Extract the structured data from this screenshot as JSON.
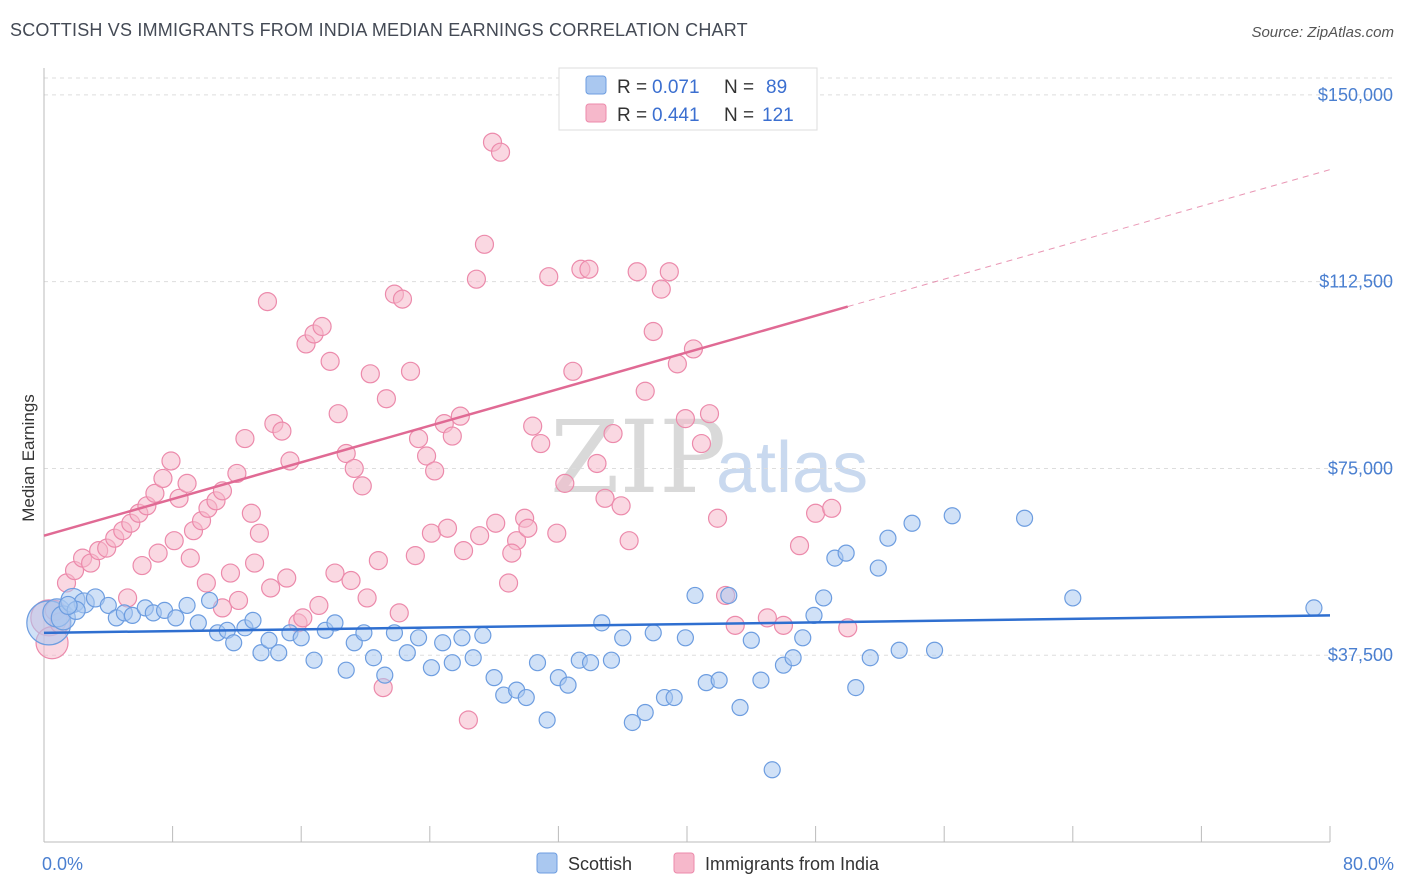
{
  "header": {
    "title": "SCOTTISH VS IMMIGRANTS FROM INDIA MEDIAN EARNINGS CORRELATION CHART",
    "source": "Source: ZipAtlas.com"
  },
  "colors": {
    "scottish_fill": "#aac8f0",
    "scottish_stroke": "#6d9de0",
    "scottish_line": "#2f6fd0",
    "india_fill": "#f6b8cb",
    "india_stroke": "#ec8aab",
    "india_line": "#e06a94",
    "axis_label": "#4a7fd0",
    "grid": "#dddddd"
  },
  "watermark": {
    "zip": "ZIP",
    "atlas": "atlas"
  },
  "legend": {
    "scottish": {
      "r_label": "R =",
      "r_value": "0.071",
      "n_label": "N =",
      "n_value": "89"
    },
    "india": {
      "r_label": "R =",
      "r_value": "0.441",
      "n_label": "N =",
      "n_value": "121"
    }
  },
  "bottom_legend": {
    "scottish": "Scottish",
    "india": "Immigrants from India"
  },
  "chart_data": {
    "type": "scatter",
    "title": "SCOTTISH VS IMMIGRANTS FROM INDIA MEDIAN EARNINGS CORRELATION CHART",
    "xlabel": "",
    "ylabel": "Median Earnings",
    "xlim": [
      0,
      80
    ],
    "ylim": [
      0,
      155000
    ],
    "x_tick_labels": [
      "0.0%",
      "80.0%"
    ],
    "y_ticks": [
      37500,
      75000,
      112500,
      150000
    ],
    "y_tick_labels": [
      "$37,500",
      "$75,000",
      "$112,500",
      "$150,000"
    ],
    "grid": true,
    "legend_position": "top-center",
    "series": [
      {
        "name": "Scottish",
        "R": 0.071,
        "N": 89,
        "trend": {
          "x": [
            0,
            80
          ],
          "y": [
            42000,
            45500
          ],
          "extrapolated_to": 80
        },
        "points": [
          [
            0.3,
            44000,
            22
          ],
          [
            0.8,
            46000,
            14
          ],
          [
            1.2,
            45000,
            12
          ],
          [
            1.8,
            48500,
            12
          ],
          [
            2.5,
            48000,
            10
          ],
          [
            3.2,
            49000,
            9
          ],
          [
            2.0,
            46500,
            9
          ],
          [
            1.5,
            47500,
            9
          ],
          [
            4.0,
            47500,
            8
          ],
          [
            4.5,
            45000,
            8
          ],
          [
            5.0,
            46000,
            8
          ],
          [
            5.5,
            45500,
            8
          ],
          [
            6.3,
            47000,
            8
          ],
          [
            6.8,
            46000,
            8
          ],
          [
            7.5,
            46500,
            8
          ],
          [
            8.2,
            45000,
            8
          ],
          [
            8.9,
            47500,
            8
          ],
          [
            9.6,
            44000,
            8
          ],
          [
            10.3,
            48500,
            8
          ],
          [
            10.8,
            42000,
            8
          ],
          [
            11.4,
            42500,
            8
          ],
          [
            11.8,
            40000,
            8
          ],
          [
            12.5,
            43000,
            8
          ],
          [
            13.0,
            44500,
            8
          ],
          [
            13.5,
            38000,
            8
          ],
          [
            14.0,
            40500,
            8
          ],
          [
            14.6,
            38000,
            8
          ],
          [
            15.3,
            42000,
            8
          ],
          [
            16.0,
            41000,
            8
          ],
          [
            16.8,
            36500,
            8
          ],
          [
            17.5,
            42500,
            8
          ],
          [
            18.1,
            44000,
            8
          ],
          [
            18.8,
            34500,
            8
          ],
          [
            19.3,
            40000,
            8
          ],
          [
            19.9,
            42000,
            8
          ],
          [
            20.5,
            37000,
            8
          ],
          [
            21.2,
            33500,
            8
          ],
          [
            21.8,
            42000,
            8
          ],
          [
            22.6,
            38000,
            8
          ],
          [
            23.3,
            41000,
            8
          ],
          [
            24.1,
            35000,
            8
          ],
          [
            24.8,
            40000,
            8
          ],
          [
            25.4,
            36000,
            8
          ],
          [
            26.0,
            41000,
            8
          ],
          [
            26.7,
            37000,
            8
          ],
          [
            27.3,
            41500,
            8
          ],
          [
            28.0,
            33000,
            8
          ],
          [
            28.6,
            29500,
            8
          ],
          [
            29.4,
            30500,
            8
          ],
          [
            30.0,
            29000,
            8
          ],
          [
            30.7,
            36000,
            8
          ],
          [
            31.3,
            24500,
            8
          ],
          [
            32.0,
            33000,
            8
          ],
          [
            32.6,
            31500,
            8
          ],
          [
            33.3,
            36500,
            8
          ],
          [
            34.0,
            36000,
            8
          ],
          [
            34.7,
            44000,
            8
          ],
          [
            35.3,
            36500,
            8
          ],
          [
            36.0,
            41000,
            8
          ],
          [
            36.6,
            24000,
            8
          ],
          [
            37.4,
            26000,
            8
          ],
          [
            37.9,
            42000,
            8
          ],
          [
            38.6,
            29000,
            8
          ],
          [
            39.2,
            29000,
            8
          ],
          [
            39.9,
            41000,
            8
          ],
          [
            40.5,
            49500,
            8
          ],
          [
            41.2,
            32000,
            8
          ],
          [
            42.0,
            32500,
            8
          ],
          [
            42.6,
            49500,
            8
          ],
          [
            43.3,
            27000,
            8
          ],
          [
            44.0,
            40500,
            8
          ],
          [
            44.6,
            32500,
            8
          ],
          [
            45.3,
            14500,
            8
          ],
          [
            46.0,
            35500,
            8
          ],
          [
            46.6,
            37000,
            8
          ],
          [
            47.2,
            41000,
            8
          ],
          [
            47.9,
            45500,
            8
          ],
          [
            48.5,
            49000,
            8
          ],
          [
            49.2,
            57000,
            8
          ],
          [
            49.9,
            58000,
            8
          ],
          [
            50.5,
            31000,
            8
          ],
          [
            51.4,
            37000,
            8
          ],
          [
            51.9,
            55000,
            8
          ],
          [
            52.5,
            61000,
            8
          ],
          [
            53.2,
            38500,
            8
          ],
          [
            54.0,
            64000,
            8
          ],
          [
            55.4,
            38500,
            8
          ],
          [
            56.5,
            65500,
            8
          ],
          [
            61.0,
            65000,
            8
          ],
          [
            64.0,
            49000,
            8
          ],
          [
            79.0,
            47000,
            8
          ]
        ]
      },
      {
        "name": "Immigrants from India",
        "R": 0.441,
        "N": 121,
        "trend": {
          "x": [
            0,
            50,
            80
          ],
          "y": [
            61500,
            107500,
            135000
          ],
          "solid_until": 50
        },
        "points": [
          [
            0.3,
            45000,
            18
          ],
          [
            0.5,
            40000,
            16
          ],
          [
            0.7,
            46500,
            10
          ],
          [
            1.0,
            44000,
            10
          ],
          [
            1.4,
            52000,
            9
          ],
          [
            1.9,
            54500,
            9
          ],
          [
            2.4,
            57000,
            9
          ],
          [
            2.9,
            56000,
            9
          ],
          [
            3.4,
            58500,
            9
          ],
          [
            3.9,
            59000,
            9
          ],
          [
            4.4,
            61000,
            9
          ],
          [
            4.9,
            62500,
            9
          ],
          [
            5.4,
            64000,
            9
          ],
          [
            5.9,
            66000,
            9
          ],
          [
            6.4,
            67500,
            9
          ],
          [
            6.9,
            70000,
            9
          ],
          [
            7.4,
            73000,
            9
          ],
          [
            7.9,
            76500,
            9
          ],
          [
            8.4,
            69000,
            9
          ],
          [
            8.9,
            72000,
            9
          ],
          [
            9.3,
            62500,
            9
          ],
          [
            9.8,
            64500,
            9
          ],
          [
            10.2,
            67000,
            9
          ],
          [
            10.7,
            68500,
            9
          ],
          [
            11.1,
            70500,
            9
          ],
          [
            11.6,
            54000,
            9
          ],
          [
            12.0,
            74000,
            9
          ],
          [
            12.5,
            81000,
            9
          ],
          [
            12.9,
            66000,
            9
          ],
          [
            13.4,
            62000,
            9
          ],
          [
            13.9,
            108500,
            9
          ],
          [
            14.3,
            84000,
            9
          ],
          [
            14.8,
            82500,
            9
          ],
          [
            15.3,
            76500,
            9
          ],
          [
            15.8,
            44000,
            9
          ],
          [
            16.3,
            100000,
            9
          ],
          [
            16.8,
            102000,
            9
          ],
          [
            17.3,
            103500,
            9
          ],
          [
            17.8,
            96500,
            9
          ],
          [
            18.3,
            86000,
            9
          ],
          [
            18.8,
            78000,
            9
          ],
          [
            19.3,
            75000,
            9
          ],
          [
            19.8,
            71500,
            9
          ],
          [
            20.3,
            94000,
            9
          ],
          [
            20.8,
            56500,
            9
          ],
          [
            21.3,
            89000,
            9
          ],
          [
            21.8,
            110000,
            9
          ],
          [
            22.3,
            109000,
            9
          ],
          [
            22.8,
            94500,
            9
          ],
          [
            23.3,
            81000,
            9
          ],
          [
            23.8,
            77500,
            9
          ],
          [
            24.3,
            74500,
            9
          ],
          [
            24.9,
            84000,
            9
          ],
          [
            25.4,
            81500,
            9
          ],
          [
            25.9,
            85500,
            9
          ],
          [
            26.4,
            24500,
            9
          ],
          [
            26.9,
            113000,
            9
          ],
          [
            27.4,
            120000,
            9
          ],
          [
            27.9,
            140500,
            9
          ],
          [
            28.4,
            138500,
            9
          ],
          [
            28.9,
            52000,
            9
          ],
          [
            29.4,
            60500,
            9
          ],
          [
            29.9,
            65000,
            9
          ],
          [
            30.4,
            83500,
            9
          ],
          [
            30.9,
            80000,
            9
          ],
          [
            31.4,
            113500,
            9
          ],
          [
            31.9,
            62000,
            9
          ],
          [
            32.4,
            72000,
            9
          ],
          [
            32.9,
            94500,
            9
          ],
          [
            33.4,
            115000,
            9
          ],
          [
            33.9,
            115000,
            9
          ],
          [
            34.4,
            76000,
            9
          ],
          [
            34.9,
            69000,
            9
          ],
          [
            35.4,
            82000,
            9
          ],
          [
            35.9,
            67500,
            9
          ],
          [
            36.4,
            60500,
            9
          ],
          [
            36.9,
            114500,
            9
          ],
          [
            37.4,
            90500,
            9
          ],
          [
            37.9,
            102500,
            9
          ],
          [
            38.4,
            111000,
            9
          ],
          [
            38.9,
            114500,
            9
          ],
          [
            39.4,
            96000,
            9
          ],
          [
            39.9,
            85000,
            9
          ],
          [
            40.4,
            99000,
            9
          ],
          [
            40.9,
            80000,
            9
          ],
          [
            41.4,
            86000,
            9
          ],
          [
            41.9,
            65000,
            9
          ],
          [
            42.4,
            49500,
            9
          ],
          [
            43.0,
            43500,
            9
          ],
          [
            45.0,
            45000,
            9
          ],
          [
            46.0,
            43500,
            9
          ],
          [
            47.0,
            59500,
            9
          ],
          [
            48.0,
            66000,
            9
          ],
          [
            49.0,
            67000,
            9
          ],
          [
            50.0,
            43000,
            9
          ],
          [
            5.2,
            49000,
            9
          ],
          [
            6.1,
            55500,
            9
          ],
          [
            7.1,
            58000,
            9
          ],
          [
            8.1,
            60500,
            9
          ],
          [
            9.1,
            57000,
            9
          ],
          [
            10.1,
            52000,
            9
          ],
          [
            11.1,
            47000,
            9
          ],
          [
            12.1,
            48500,
            9
          ],
          [
            13.1,
            56000,
            9
          ],
          [
            14.1,
            51000,
            9
          ],
          [
            15.1,
            53000,
            9
          ],
          [
            16.1,
            45000,
            9
          ],
          [
            17.1,
            47500,
            9
          ],
          [
            18.1,
            54000,
            9
          ],
          [
            19.1,
            52500,
            9
          ],
          [
            20.1,
            49000,
            9
          ],
          [
            21.1,
            31000,
            9
          ],
          [
            22.1,
            46000,
            9
          ],
          [
            23.1,
            57500,
            9
          ],
          [
            24.1,
            62000,
            9
          ],
          [
            25.1,
            63000,
            9
          ],
          [
            26.1,
            58500,
            9
          ],
          [
            27.1,
            61500,
            9
          ],
          [
            28.1,
            64000,
            9
          ],
          [
            29.1,
            58000,
            9
          ],
          [
            30.1,
            63000,
            9
          ]
        ]
      }
    ]
  }
}
